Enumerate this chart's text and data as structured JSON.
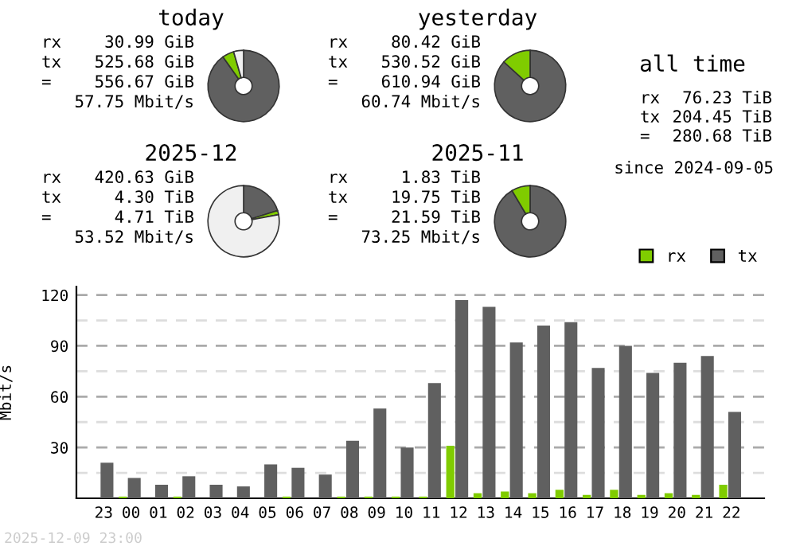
{
  "chart_data": [
    {
      "type": "donut",
      "title": "today",
      "categories": [
        null,
        null,
        null
      ],
      "values": [
        90.2,
        5.3,
        4.5
      ],
      "colors": [
        "#606060",
        "#80cc00",
        "#f0f0f0"
      ],
      "annotations": [
        "rx",
        "30.99 GiB",
        "tx",
        "525.68 GiB",
        "=",
        "556.67 GiB",
        "57.75 Mbit/s"
      ]
    },
    {
      "type": "donut",
      "title": "yesterday",
      "categories": [
        null,
        null
      ],
      "values": [
        86.8,
        13.2
      ],
      "colors": [
        "#606060",
        "#80cc00"
      ],
      "annotations": [
        "rx",
        "80.42 GiB",
        "tx",
        "530.52 GiB",
        "=",
        "610.94 GiB",
        "60.74 Mbit/s"
      ]
    },
    {
      "type": "other",
      "title": "all time",
      "annotations": [
        "rx",
        "76.23 TiB",
        "tx",
        "204.45 TiB",
        "=",
        "280.68 TiB",
        "since 2024-09-05"
      ]
    },
    {
      "type": "donut",
      "title": "2025-12",
      "categories": [
        null,
        null,
        null
      ],
      "values": [
        20.1,
        1.9,
        78.0
      ],
      "colors": [
        "#606060",
        "#80cc00",
        "#f0f0f0"
      ],
      "annotations": [
        "rx",
        "420.63 GiB",
        "tx",
        "4.30 TiB",
        "=",
        "4.71 TiB",
        "53.52 Mbit/s"
      ]
    },
    {
      "type": "donut",
      "title": "2025-11",
      "categories": [
        null,
        null
      ],
      "values": [
        91.5,
        8.5
      ],
      "colors": [
        "#606060",
        "#80cc00"
      ],
      "annotations": [
        "rx",
        "1.83 TiB",
        "tx",
        "19.75 TiB",
        "=",
        "21.59 TiB",
        "73.25 Mbit/s"
      ]
    },
    {
      "type": "bar",
      "ylabel": "Mbit/s",
      "legend": "top right",
      "grid": "y",
      "categories": [
        "23",
        "00",
        "01",
        "02",
        "03",
        "04",
        "05",
        "06",
        "07",
        "08",
        "09",
        "10",
        "11",
        "12",
        "13",
        "14",
        "15",
        "16",
        "17",
        "18",
        "19",
        "20",
        "21",
        "22"
      ],
      "ylim": [
        0,
        125
      ],
      "yticks": [
        {
          "value": 15,
          "label": null
        },
        30,
        {
          "value": 45,
          "label": null
        },
        60,
        {
          "value": 75,
          "label": null
        },
        90,
        {
          "value": 105,
          "label": null
        },
        120
      ],
      "series": [
        {
          "name": "rx",
          "color": "#80cc00",
          "values": [
            0,
            1,
            0,
            1,
            0,
            0,
            0,
            1,
            0,
            1,
            1,
            1,
            1,
            31,
            3,
            4,
            3,
            5,
            2,
            5,
            2,
            3,
            2,
            8
          ]
        },
        {
          "name": "tx",
          "color": "#606060",
          "values": [
            21,
            12,
            8,
            13,
            8,
            7,
            20,
            18,
            14,
            34,
            53,
            30,
            68,
            117,
            113,
            92,
            102,
            104,
            77,
            90,
            74,
            80,
            84,
            51
          ]
        }
      ],
      "annotations": [
        "2025-12-09 23:00"
      ]
    }
  ]
}
